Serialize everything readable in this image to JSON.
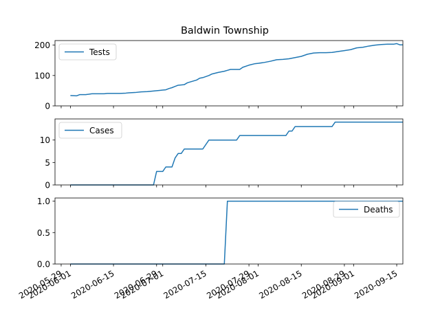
{
  "chart_data": {
    "type": "line",
    "title": "Baldwin Township",
    "series_color": "#1f77b4",
    "shared_x": true,
    "xlabel": "",
    "xtick_labels": [
      "2020-05-29",
      "2020-06-01",
      "2020-06-15",
      "2020-06-29",
      "2020-07-01",
      "2020-07-15",
      "2020-07-29",
      "2020-08-01",
      "2020-08-15",
      "2020-08-29",
      "2020-09-01",
      "2020-09-15"
    ],
    "xtick_dates": [
      "2020-05-29",
      "2020-06-01",
      "2020-06-15",
      "2020-06-29",
      "2020-07-01",
      "2020-07-15",
      "2020-07-29",
      "2020-08-01",
      "2020-08-15",
      "2020-08-29",
      "2020-09-01",
      "2020-09-15"
    ],
    "xlim": [
      "2020-05-27",
      "2020-09-17"
    ],
    "panels": [
      {
        "name": "Tests",
        "legend_loc": "upper-left",
        "ylim": [
          0,
          215
        ],
        "yticks": [
          0,
          100,
          200
        ],
        "ytick_labels": [
          "0",
          "100",
          "200"
        ],
        "points": [
          [
            "2020-06-01",
            34
          ],
          [
            "2020-06-03",
            33
          ],
          [
            "2020-06-04",
            37
          ],
          [
            "2020-06-06",
            37
          ],
          [
            "2020-06-08",
            40
          ],
          [
            "2020-06-10",
            40
          ],
          [
            "2020-06-12",
            40
          ],
          [
            "2020-06-13",
            41
          ],
          [
            "2020-06-15",
            41
          ],
          [
            "2020-06-17",
            41
          ],
          [
            "2020-06-19",
            42
          ],
          [
            "2020-06-20",
            43
          ],
          [
            "2020-06-22",
            44
          ],
          [
            "2020-06-24",
            46
          ],
          [
            "2020-06-26",
            47
          ],
          [
            "2020-06-28",
            49
          ],
          [
            "2020-06-30",
            51
          ],
          [
            "2020-07-01",
            52
          ],
          [
            "2020-07-02",
            53
          ],
          [
            "2020-07-03",
            57
          ],
          [
            "2020-07-04",
            60
          ],
          [
            "2020-07-05",
            64
          ],
          [
            "2020-07-06",
            68
          ],
          [
            "2020-07-08",
            70
          ],
          [
            "2020-07-09",
            76
          ],
          [
            "2020-07-10",
            79
          ],
          [
            "2020-07-12",
            85
          ],
          [
            "2020-07-13",
            91
          ],
          [
            "2020-07-14",
            93
          ],
          [
            "2020-07-16",
            100
          ],
          [
            "2020-07-17",
            105
          ],
          [
            "2020-07-19",
            110
          ],
          [
            "2020-07-21",
            114
          ],
          [
            "2020-07-22",
            117
          ],
          [
            "2020-07-23",
            120
          ],
          [
            "2020-07-26",
            120
          ],
          [
            "2020-07-27",
            127
          ],
          [
            "2020-07-29",
            134
          ],
          [
            "2020-07-31",
            139
          ],
          [
            "2020-08-01",
            140
          ],
          [
            "2020-08-03",
            143
          ],
          [
            "2020-08-05",
            147
          ],
          [
            "2020-08-07",
            152
          ],
          [
            "2020-08-09",
            153
          ],
          [
            "2020-08-11",
            155
          ],
          [
            "2020-08-13",
            159
          ],
          [
            "2020-08-15",
            163
          ],
          [
            "2020-08-17",
            170
          ],
          [
            "2020-08-19",
            174
          ],
          [
            "2020-08-21",
            175
          ],
          [
            "2020-08-23",
            175
          ],
          [
            "2020-08-25",
            176
          ],
          [
            "2020-08-27",
            179
          ],
          [
            "2020-08-29",
            182
          ],
          [
            "2020-08-31",
            185
          ],
          [
            "2020-09-02",
            191
          ],
          [
            "2020-09-04",
            193
          ],
          [
            "2020-09-06",
            197
          ],
          [
            "2020-09-08",
            200
          ],
          [
            "2020-09-10",
            202
          ],
          [
            "2020-09-12",
            203
          ],
          [
            "2020-09-14",
            203
          ],
          [
            "2020-09-15",
            205
          ],
          [
            "2020-09-16",
            201
          ],
          [
            "2020-09-17",
            201
          ]
        ]
      },
      {
        "name": "Cases",
        "legend_loc": "upper-left",
        "ylim": [
          0,
          14.7
        ],
        "yticks": [
          0,
          5,
          10
        ],
        "ytick_labels": [
          "0",
          "5",
          "10"
        ],
        "points": [
          [
            "2020-06-01",
            0
          ],
          [
            "2020-06-28",
            0
          ],
          [
            "2020-06-29",
            3
          ],
          [
            "2020-07-01",
            3
          ],
          [
            "2020-07-02",
            4
          ],
          [
            "2020-07-04",
            4
          ],
          [
            "2020-07-05",
            6
          ],
          [
            "2020-07-06",
            7
          ],
          [
            "2020-07-07",
            7
          ],
          [
            "2020-07-08",
            8
          ],
          [
            "2020-07-14",
            8
          ],
          [
            "2020-07-16",
            10
          ],
          [
            "2020-07-25",
            10
          ],
          [
            "2020-07-26",
            11
          ],
          [
            "2020-08-10",
            11
          ],
          [
            "2020-08-11",
            12
          ],
          [
            "2020-08-12",
            12
          ],
          [
            "2020-08-13",
            13
          ],
          [
            "2020-08-25",
            13
          ],
          [
            "2020-08-26",
            14
          ],
          [
            "2020-09-17",
            14
          ]
        ]
      },
      {
        "name": "Deaths",
        "legend_loc": "upper-right",
        "ylim": [
          0,
          1.05
        ],
        "yticks": [
          0,
          0.5,
          1.0
        ],
        "ytick_labels": [
          "0.0",
          "0.5",
          "1.0"
        ],
        "points": [
          [
            "2020-06-01",
            0
          ],
          [
            "2020-07-21",
            0
          ],
          [
            "2020-07-22",
            1
          ],
          [
            "2020-09-17",
            1
          ]
        ]
      }
    ]
  }
}
